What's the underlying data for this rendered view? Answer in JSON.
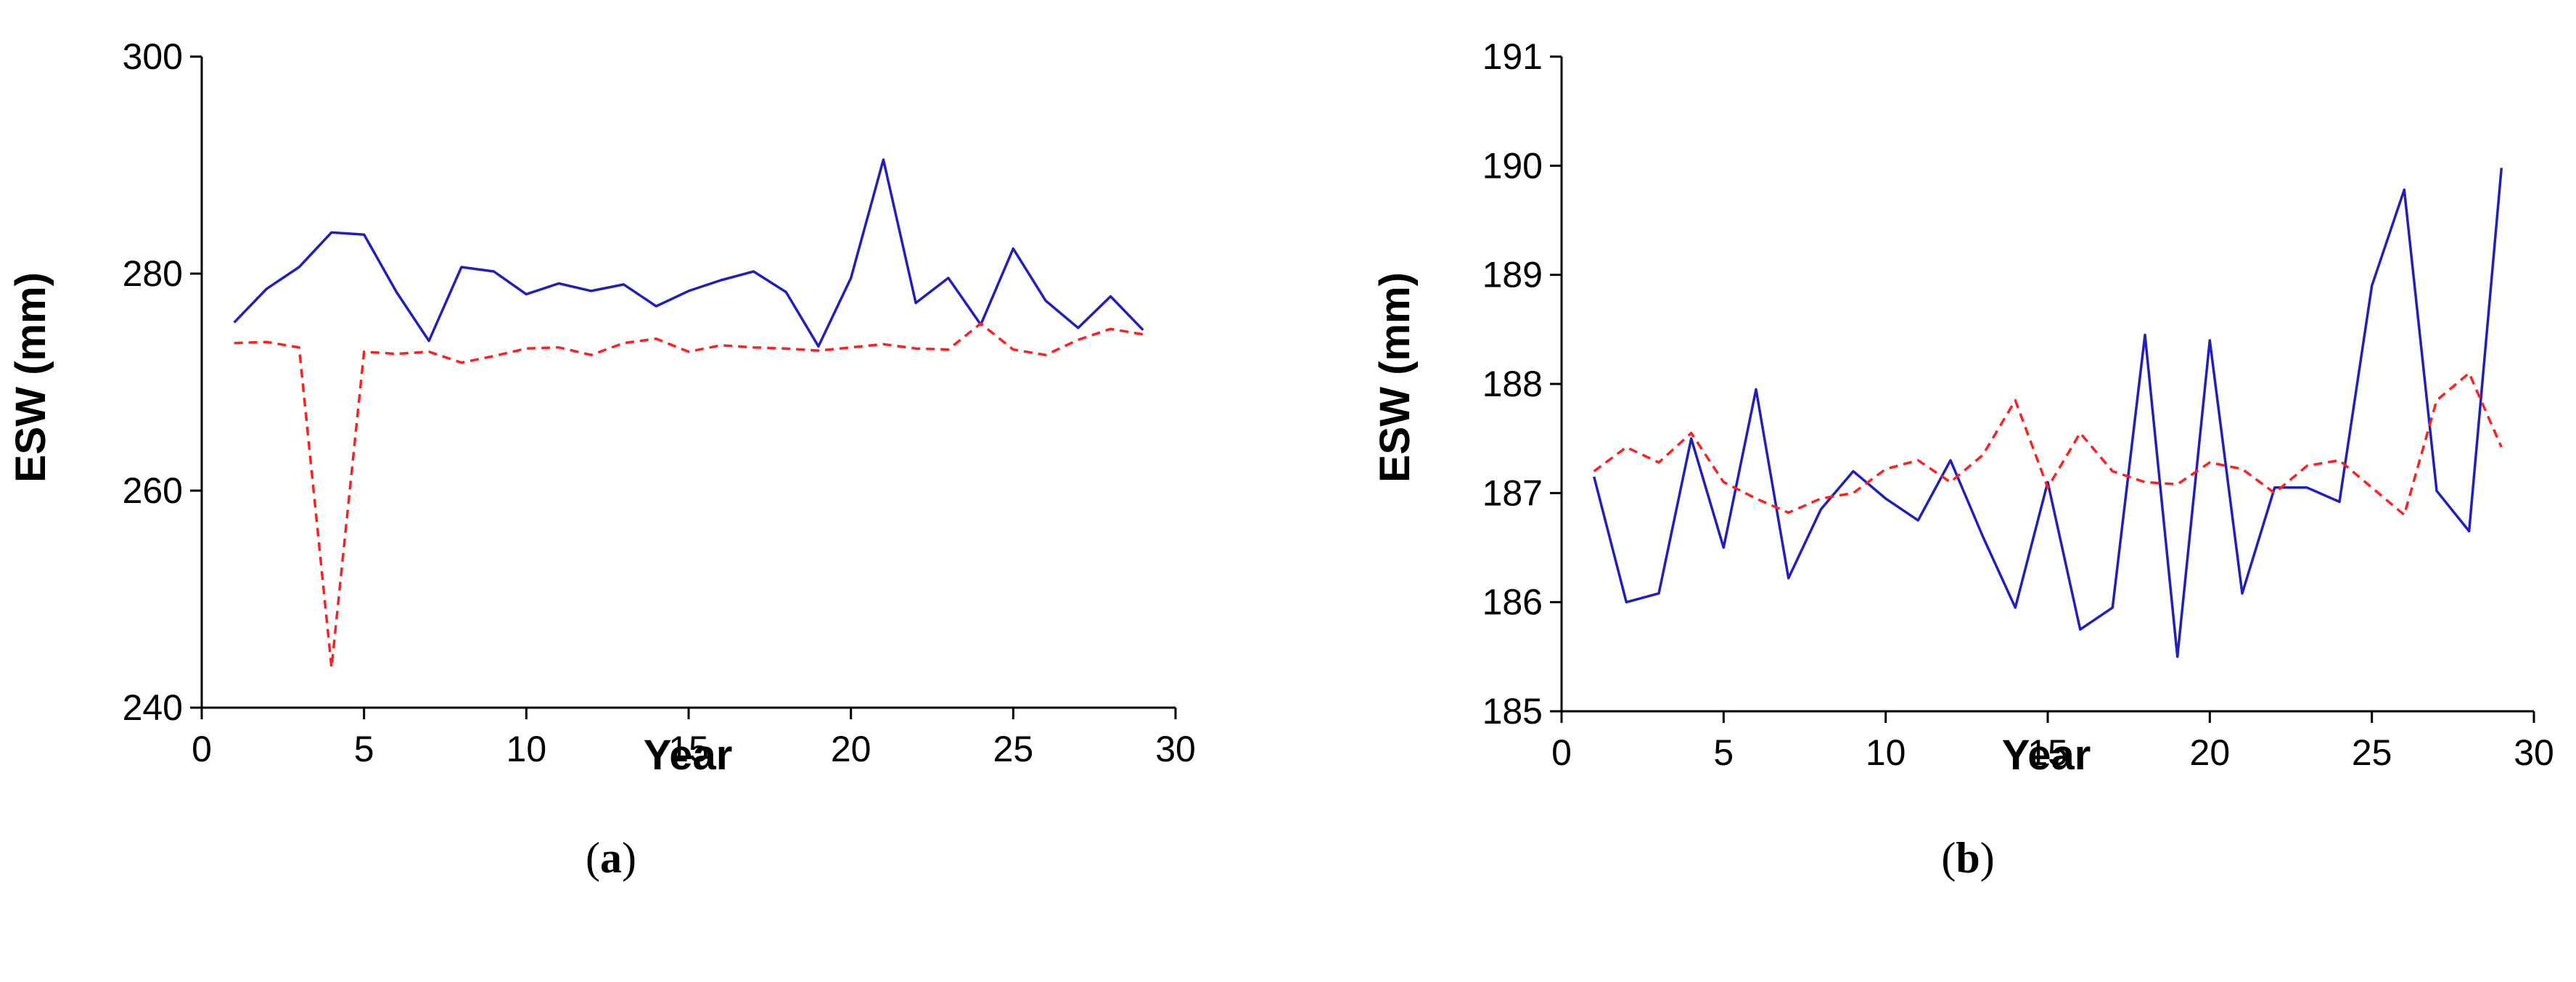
{
  "colors": {
    "series_1": "#1f1fbf",
    "series_2": "#ff1f1f",
    "axis": "#000000"
  },
  "chart_data": [
    {
      "type": "line",
      "caption_letter": "a",
      "xlabel": "Year",
      "ylabel": "ESW (mm)",
      "xlim": [
        0,
        30
      ],
      "ylim": [
        240,
        300
      ],
      "xticks": [
        0,
        5,
        10,
        15,
        20,
        25,
        30
      ],
      "yticks": [
        240,
        260,
        280,
        300
      ],
      "grid": false,
      "x": [
        1,
        2,
        3,
        4,
        5,
        6,
        7,
        8,
        9,
        10,
        11,
        12,
        13,
        14,
        15,
        16,
        17,
        18,
        19,
        20,
        21,
        22,
        23,
        24,
        25,
        26,
        27,
        28,
        29
      ],
      "series": [
        {
          "style": "solid",
          "color": "#1f1fbf",
          "values": [
            275.5,
            278.6,
            280.6,
            283.8,
            283.6,
            278.3,
            273.8,
            280.6,
            280.2,
            278.1,
            279.1,
            278.4,
            279.0,
            277.0,
            278.4,
            279.4,
            280.2,
            278.3,
            273.3,
            279.6,
            290.5,
            277.3,
            279.6,
            275.3,
            282.3,
            277.5,
            275.0,
            277.9,
            274.8
          ]
        },
        {
          "style": "dashed",
          "color": "#ff1f1f",
          "values": [
            273.6,
            273.7,
            273.2,
            243.7,
            272.8,
            272.6,
            272.8,
            271.8,
            272.4,
            273.1,
            273.2,
            272.5,
            273.6,
            274.0,
            272.8,
            273.4,
            273.2,
            273.1,
            272.9,
            273.2,
            273.5,
            273.1,
            273.0,
            275.4,
            273.0,
            272.5,
            273.9,
            274.9,
            274.4
          ]
        }
      ]
    },
    {
      "type": "line",
      "caption_letter": "b",
      "xlabel": "Year",
      "ylabel": "ESW (mm)",
      "xlim": [
        0,
        30
      ],
      "ylim": [
        185,
        191
      ],
      "xticks": [
        0,
        5,
        10,
        15,
        20,
        25,
        30
      ],
      "yticks": [
        185,
        186,
        187,
        188,
        189,
        190,
        191
      ],
      "grid": false,
      "x": [
        1,
        2,
        3,
        4,
        5,
        6,
        7,
        8,
        9,
        10,
        11,
        12,
        13,
        14,
        15,
        16,
        17,
        18,
        19,
        20,
        21,
        22,
        23,
        24,
        25,
        26,
        27,
        28,
        29
      ],
      "series": [
        {
          "style": "solid",
          "color": "#1f1fbf",
          "values": [
            187.15,
            186.0,
            186.08,
            187.5,
            186.5,
            187.95,
            186.22,
            186.85,
            187.2,
            186.95,
            186.75,
            187.3,
            186.6,
            185.95,
            187.1,
            185.75,
            185.95,
            188.45,
            185.5,
            188.4,
            186.08,
            187.05,
            187.05,
            186.92,
            188.9,
            189.78,
            187.02,
            186.65,
            189.98
          ]
        },
        {
          "style": "dashed",
          "color": "#ff1f1f",
          "values": [
            187.2,
            187.42,
            187.28,
            187.55,
            187.1,
            186.95,
            186.82,
            186.95,
            187.0,
            187.22,
            187.3,
            187.1,
            187.35,
            187.85,
            187.05,
            187.55,
            187.2,
            187.1,
            187.08,
            187.28,
            187.22,
            187.0,
            187.25,
            187.3,
            187.05,
            186.8,
            187.85,
            188.1,
            187.42
          ]
        }
      ]
    }
  ]
}
